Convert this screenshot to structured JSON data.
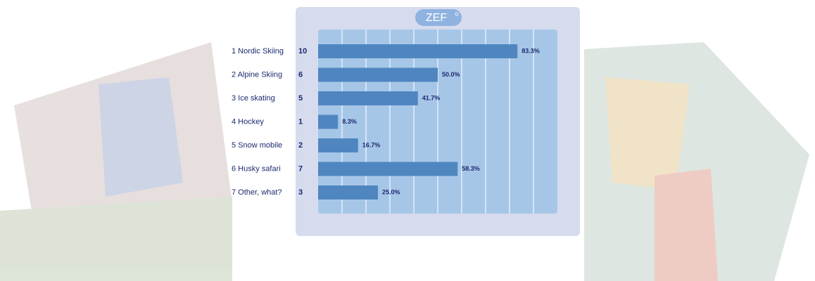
{
  "chart_data": {
    "type": "bar",
    "logo": "ZEF",
    "categories": [
      "1 Nordic Skiing",
      "2 Alpine Skiing",
      "3 Ice skating",
      "4 Hockey",
      "5 Snow mobile",
      "6 Husky safari",
      "7 Other, what?"
    ],
    "counts": [
      10,
      6,
      5,
      1,
      2,
      7,
      3
    ],
    "values": [
      83.3,
      50.0,
      41.7,
      8.3,
      16.7,
      58.3,
      25.0
    ],
    "value_labels": [
      "83.3%",
      "50.0%",
      "41.7%",
      "8.3%",
      "16.7%",
      "58.3%",
      "25.0%"
    ],
    "color": "#4f86c0",
    "xlim": [
      0,
      100
    ],
    "xticks": [
      0,
      10,
      20,
      30,
      40,
      50,
      60,
      70,
      80,
      90,
      100
    ],
    "grid": true
  }
}
